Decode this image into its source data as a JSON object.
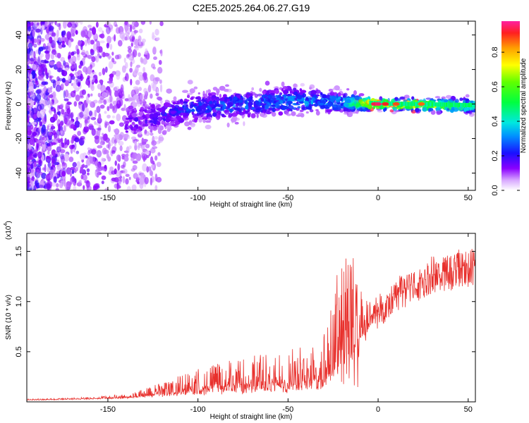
{
  "title": "C2E5.2025.264.06.27.G19",
  "colors": {
    "snr_line": "#e8302c",
    "spectrogram_low": "#7a00e6",
    "spectrogram_high": "#e8302c",
    "axis": "#000000"
  },
  "chart_data": [
    {
      "type": "heatmap",
      "name": "spectrogram",
      "xlabel": "Height of straight line (km)",
      "ylabel": "Frequency (Hz)",
      "xlim": [
        -195,
        54
      ],
      "ylim": [
        -50,
        48
      ],
      "xticks": [
        -150,
        -100,
        -50,
        0,
        50
      ],
      "yticks": [
        -40,
        -20,
        0,
        20,
        40
      ],
      "description_series": [
        {
          "x": -190,
          "freq_center": 0,
          "spread": 50,
          "amplitude": 0.05
        },
        {
          "x": -135,
          "freq_center": -10,
          "spread": 8,
          "amplitude": 0.15
        },
        {
          "x": -100,
          "freq_center": -2,
          "spread": 6,
          "amplitude": 0.25
        },
        {
          "x": -50,
          "freq_center": 2,
          "spread": 6,
          "amplitude": 0.3
        },
        {
          "x": -20,
          "freq_center": 1,
          "spread": 4,
          "amplitude": 0.35
        },
        {
          "x": 0,
          "freq_center": 0,
          "spread": 2,
          "amplitude": 0.95
        },
        {
          "x": 50,
          "freq_center": -1,
          "spread": 3,
          "amplitude": 0.5
        }
      ],
      "colorbar": {
        "label": "Normalized spectral amplitude",
        "ticks": [
          "0.0",
          "0.2",
          "0.4",
          "0.6",
          "0.8"
        ],
        "tick_values": [
          0.0,
          0.2,
          0.4,
          0.6,
          0.8
        ],
        "range": [
          0,
          0.98
        ]
      }
    },
    {
      "type": "line",
      "name": "snr",
      "xlabel": "Height of straight line (km)",
      "ylabel": "SNR (10 * v/v)",
      "y_scale_label": "(x10",
      "y_scale_exp": "4",
      "xlim": [
        -195,
        54
      ],
      "ylim": [
        0,
        1.68
      ],
      "xticks": [
        -150,
        -100,
        -50,
        0,
        50
      ],
      "yticks": [
        "0.5",
        "1.0",
        "1.5"
      ],
      "ytick_values": [
        0.5,
        1.0,
        1.5
      ],
      "envelope": {
        "x": [
          -195,
          -160,
          -140,
          -130,
          -120,
          -110,
          -100,
          -90,
          -80,
          -70,
          -60,
          -50,
          -40,
          -30,
          -25,
          -20,
          -17,
          -15,
          -10,
          -8,
          -5,
          0,
          5,
          10,
          20,
          30,
          40,
          54
        ],
        "base": [
          0.02,
          0.03,
          0.04,
          0.05,
          0.06,
          0.07,
          0.08,
          0.09,
          0.1,
          0.1,
          0.11,
          0.11,
          0.12,
          0.15,
          0.25,
          0.35,
          0.4,
          0.4,
          0.6,
          0.75,
          0.85,
          0.95,
          1.05,
          1.2,
          1.3,
          1.4,
          1.47,
          1.52
        ],
        "spike": [
          0.01,
          0.02,
          0.04,
          0.08,
          0.14,
          0.2,
          0.26,
          0.3,
          0.34,
          0.38,
          0.4,
          0.42,
          0.45,
          0.55,
          0.85,
          1.2,
          1.3,
          1.25,
          0.65,
          0.35,
          0.2,
          0.18,
          0.15,
          0.12,
          0.09,
          0.06,
          0.04,
          0.03
        ]
      }
    }
  ]
}
